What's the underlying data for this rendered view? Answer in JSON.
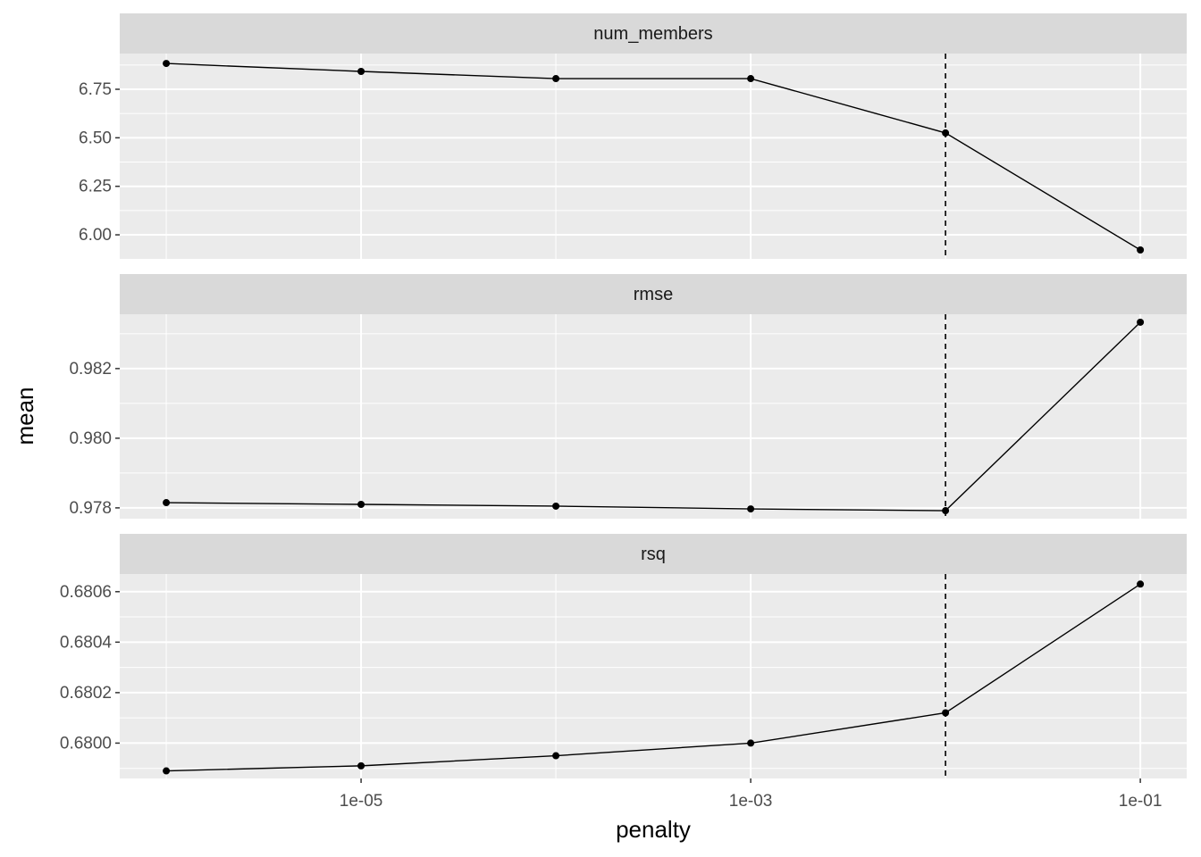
{
  "x_label": "penalty",
  "y_label": "mean",
  "chart_data": [
    {
      "type": "line",
      "title": "num_members",
      "x": [
        1e-06,
        1e-05,
        0.0001,
        0.001,
        0.01,
        0.1
      ],
      "series": [
        {
          "color": "#000000",
          "values": [
            6.883,
            6.842,
            6.805,
            6.805,
            6.525,
            5.922
          ]
        }
      ],
      "xlim": [
        5.77e-07,
        0.173
      ],
      "x_log": true,
      "xticks": [
        {
          "value": 1e-05,
          "label": "1e-05"
        },
        {
          "value": 0.001,
          "label": "1e-03"
        },
        {
          "value": 0.1,
          "label": "1e-01"
        }
      ],
      "ylim": [
        5.876,
        6.934
      ],
      "yticks": [
        {
          "value": 6,
          "label": "6.00"
        },
        {
          "value": 6.25,
          "label": "6.25"
        },
        {
          "value": 6.5,
          "label": "6.50"
        },
        {
          "value": 6.75,
          "label": "6.75"
        }
      ],
      "vline": 0.01,
      "grid": true
    },
    {
      "type": "line",
      "title": "rmse",
      "x": [
        1e-06,
        1e-05,
        0.0001,
        0.001,
        0.01,
        0.1
      ],
      "series": [
        {
          "color": "#000000",
          "values": [
            0.97815,
            0.9781,
            0.97805,
            0.97797,
            0.97792,
            0.98333
          ]
        }
      ],
      "xlim": [
        5.77e-07,
        0.173
      ],
      "x_log": true,
      "xticks": [
        {
          "value": 1e-05,
          "label": "1e-05"
        },
        {
          "value": 0.001,
          "label": "1e-03"
        },
        {
          "value": 0.1,
          "label": "1e-01"
        }
      ],
      "ylim": [
        0.97769,
        0.98356
      ],
      "yticks": [
        {
          "value": 0.978,
          "label": "0.978"
        },
        {
          "value": 0.98,
          "label": "0.980"
        },
        {
          "value": 0.982,
          "label": "0.982"
        }
      ],
      "vline": 0.01,
      "grid": true
    },
    {
      "type": "line",
      "title": "rsq",
      "x": [
        1e-06,
        1e-05,
        0.0001,
        0.001,
        0.01,
        0.1
      ],
      "series": [
        {
          "color": "#000000",
          "values": [
            0.67989,
            0.67991,
            0.67995,
            0.68,
            0.68012,
            0.68063
          ]
        }
      ],
      "xlim": [
        5.77e-07,
        0.173
      ],
      "x_log": true,
      "xticks": [
        {
          "value": 1e-05,
          "label": "1e-05"
        },
        {
          "value": 0.001,
          "label": "1e-03"
        },
        {
          "value": 0.1,
          "label": "1e-01"
        }
      ],
      "ylim": [
        0.67986,
        0.68067
      ],
      "yticks": [
        {
          "value": 0.68,
          "label": "0.6800"
        },
        {
          "value": 0.6802,
          "label": "0.6802"
        },
        {
          "value": 0.6804,
          "label": "0.6804"
        },
        {
          "value": 0.6806,
          "label": "0.6806"
        }
      ],
      "vline": 0.01,
      "grid": true
    }
  ]
}
